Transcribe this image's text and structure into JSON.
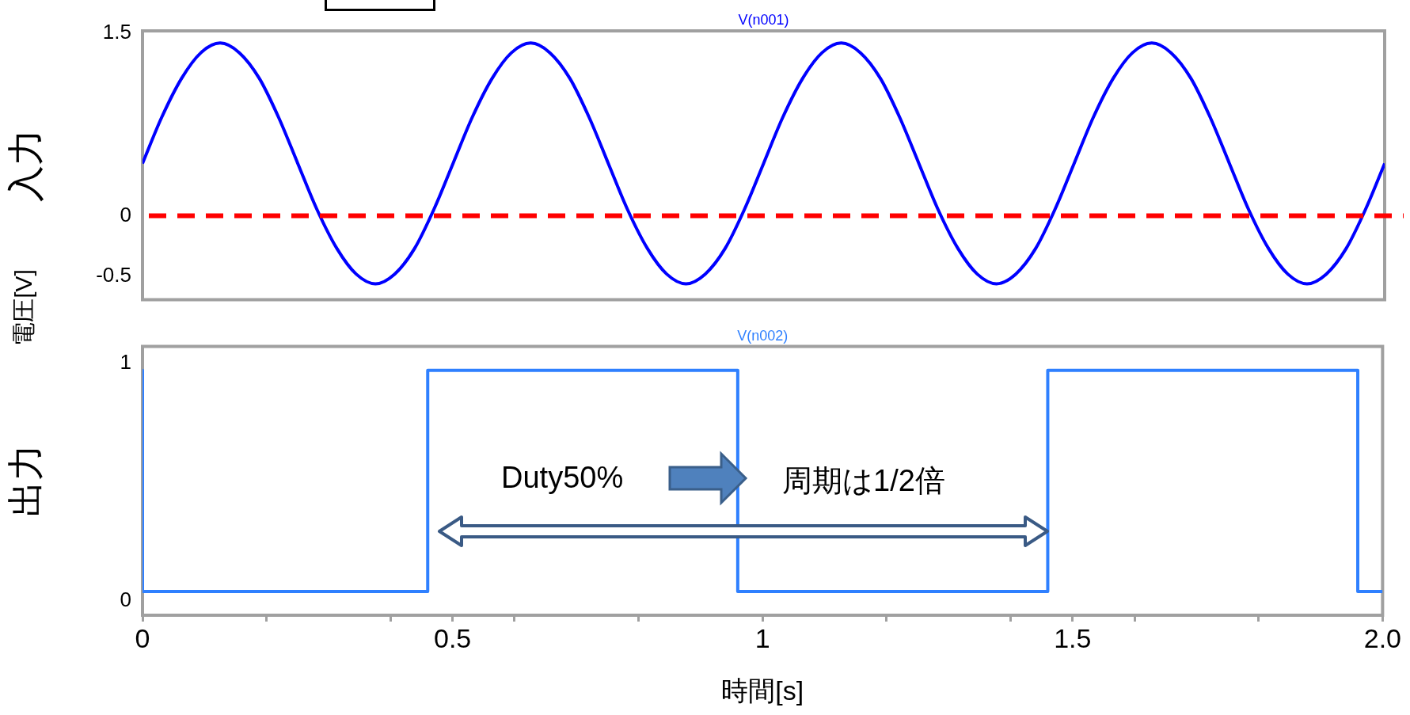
{
  "chart_data": [
    {
      "type": "line",
      "ylabel": "入力",
      "annotations": [
        "電圧[V]"
      ],
      "xlim": [
        0,
        2.0
      ],
      "ylim": [
        -0.69,
        1.52
      ],
      "yticks": [
        1.5,
        0,
        -0.5
      ],
      "tick_labels": "y",
      "grid": false,
      "legend": false,
      "marker": "none",
      "series": [
        {
          "name": "V(n001)",
          "color": "#0000ff",
          "x": [
            0,
            0.031,
            0.063,
            0.094,
            0.125,
            0.156,
            0.188,
            0.219,
            0.25,
            0.281,
            0.313,
            0.344,
            0.375,
            0.406,
            0.438,
            0.469,
            0.5,
            0.531,
            0.563,
            0.594,
            0.625,
            0.656,
            0.688,
            0.719,
            0.75,
            0.781,
            0.813,
            0.844,
            0.875,
            0.906,
            0.938,
            0.969,
            1,
            1.031,
            1.063,
            1.094,
            1.125,
            1.156,
            1.188,
            1.219,
            1.25,
            1.281,
            1.313,
            1.344,
            1.375,
            1.406,
            1.438,
            1.469,
            1.5,
            1.531,
            1.563,
            1.594,
            1.625,
            1.656,
            1.688,
            1.719,
            1.75,
            1.781,
            1.813,
            1.844,
            1.875,
            1.906,
            1.938,
            1.969,
            2.0
          ],
          "values": [
            0.43,
            0.81,
            1.13,
            1.34,
            1.42,
            1.34,
            1.13,
            0.81,
            0.43,
            0.05,
            -0.27,
            -0.48,
            -0.56,
            -0.48,
            -0.27,
            0.05,
            0.43,
            0.81,
            1.13,
            1.34,
            1.42,
            1.34,
            1.13,
            0.81,
            0.43,
            0.05,
            -0.27,
            -0.48,
            -0.56,
            -0.48,
            -0.27,
            0.05,
            0.43,
            0.81,
            1.13,
            1.34,
            1.42,
            1.34,
            1.13,
            0.81,
            0.43,
            0.05,
            -0.27,
            -0.48,
            -0.56,
            -0.48,
            -0.27,
            0.05,
            0.43,
            0.81,
            1.13,
            1.34,
            1.42,
            1.34,
            1.13,
            0.81,
            0.43,
            0.05,
            -0.27,
            -0.48,
            -0.56,
            -0.48,
            -0.27,
            0.05,
            0.43
          ]
        }
      ],
      "ref_lines": [
        {
          "axis": "y",
          "value": 0,
          "color": "#ff0000",
          "line_style": "dashed"
        }
      ]
    },
    {
      "type": "line",
      "ylabel": "出力",
      "xlabel": "時間[s]",
      "xlim": [
        0,
        2.0
      ],
      "ylim": [
        -0.06,
        1.07
      ],
      "yticks": [
        0,
        1
      ],
      "grid": false,
      "legend": false,
      "marker": "none",
      "xticks": [
        0,
        {
          "value": 0.2,
          "label": null
        },
        {
          "value": 0.4,
          "label": null
        },
        0.5,
        {
          "value": 0.6,
          "label": null
        },
        {
          "value": 0.8,
          "label": null
        },
        1,
        {
          "value": 1.2,
          "label": null
        },
        {
          "value": 1.4,
          "label": null
        },
        1.5,
        {
          "value": 1.6,
          "label": null
        },
        {
          "value": 1.8,
          "label": null
        },
        {
          "value": 2.0,
          "label": "2.0"
        }
      ],
      "series": [
        {
          "name": "V(n002)",
          "color": "#2f80ff",
          "x": [
            0,
            0,
            0.46,
            0.46,
            0.96,
            0.96,
            1.46,
            1.46,
            1.96,
            1.96,
            2.0
          ],
          "values": [
            0.97,
            0.04,
            0.04,
            0.97,
            0.97,
            0.04,
            0.04,
            0.97,
            0.97,
            0.04,
            0.04
          ]
        }
      ],
      "annotations": [
        "Duty50%",
        "周期は1/2倍"
      ]
    }
  ]
}
